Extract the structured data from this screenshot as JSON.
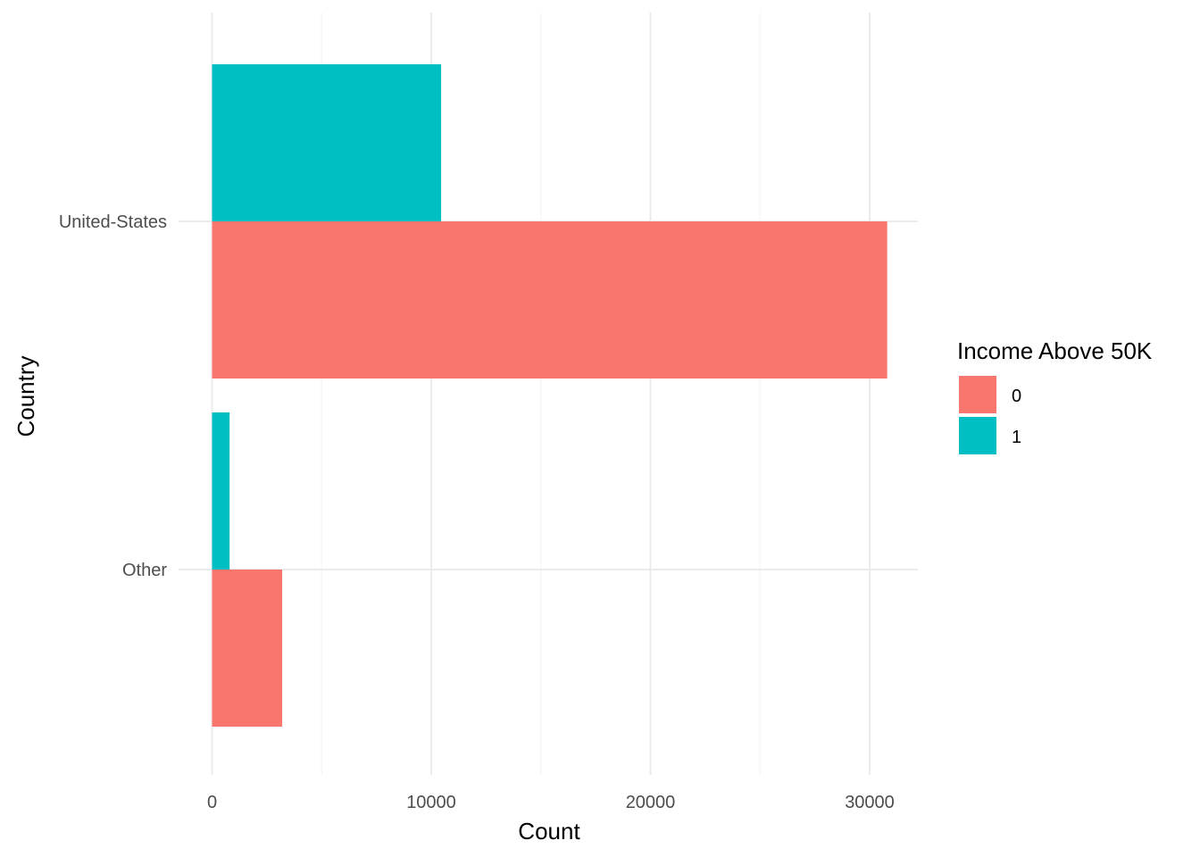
{
  "chart_data": {
    "type": "bar",
    "orientation": "horizontal",
    "position": "dodge",
    "categories": [
      "Other",
      "United-States"
    ],
    "series": [
      {
        "name": "0",
        "color": "#F8766D",
        "values": [
          3200,
          30800
        ]
      },
      {
        "name": "1",
        "color": "#00BFC4",
        "values": [
          800,
          10450
        ]
      }
    ],
    "xlabel": "Count",
    "ylabel": "Country",
    "xlim": [
      0,
      32300
    ],
    "x_ticks": [
      0,
      10000,
      20000,
      30000
    ],
    "x_tick_labels": [
      "0",
      "10000",
      "20000",
      "30000"
    ],
    "grid": true,
    "legend": {
      "title": "Income Above 50K",
      "placement": "right",
      "entries": [
        "0",
        "1"
      ]
    }
  }
}
